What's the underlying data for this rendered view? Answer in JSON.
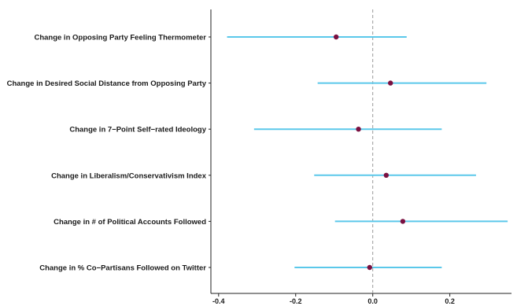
{
  "chart_data": {
    "type": "scatter",
    "subtype": "coefficient-plot",
    "title": "",
    "xlabel": "",
    "ylabel": "",
    "xlim": [
      -0.42,
      0.36
    ],
    "xticks": [
      -0.4,
      -0.2,
      0.0,
      0.2
    ],
    "xtick_labels": [
      "-0.4",
      "-0.2",
      "0.0",
      "0.2"
    ],
    "reference_line": 0,
    "grid": false,
    "legend": "none",
    "point_color": "#7a1040",
    "interval_color": "#5bc8ea",
    "reference_line_color": "#999999",
    "categories": [
      "Change in Opposing Party Feeling Thermometer",
      "Change in Desired Social Distance from Opposing Party",
      "Change in 7−Point Self−rated Ideology",
      "Change in Liberalism/Conservativism Index",
      "Change in # of Political Accounts Followed",
      "Change in % Co−Partisans Followed on Twitter"
    ],
    "estimates": [
      -0.095,
      0.046,
      -0.037,
      0.035,
      0.078,
      -0.008
    ],
    "ci_low": [
      -0.378,
      -0.143,
      -0.308,
      -0.152,
      -0.098,
      -0.203
    ],
    "ci_high": [
      0.088,
      0.295,
      0.179,
      0.268,
      0.35,
      0.179
    ]
  }
}
